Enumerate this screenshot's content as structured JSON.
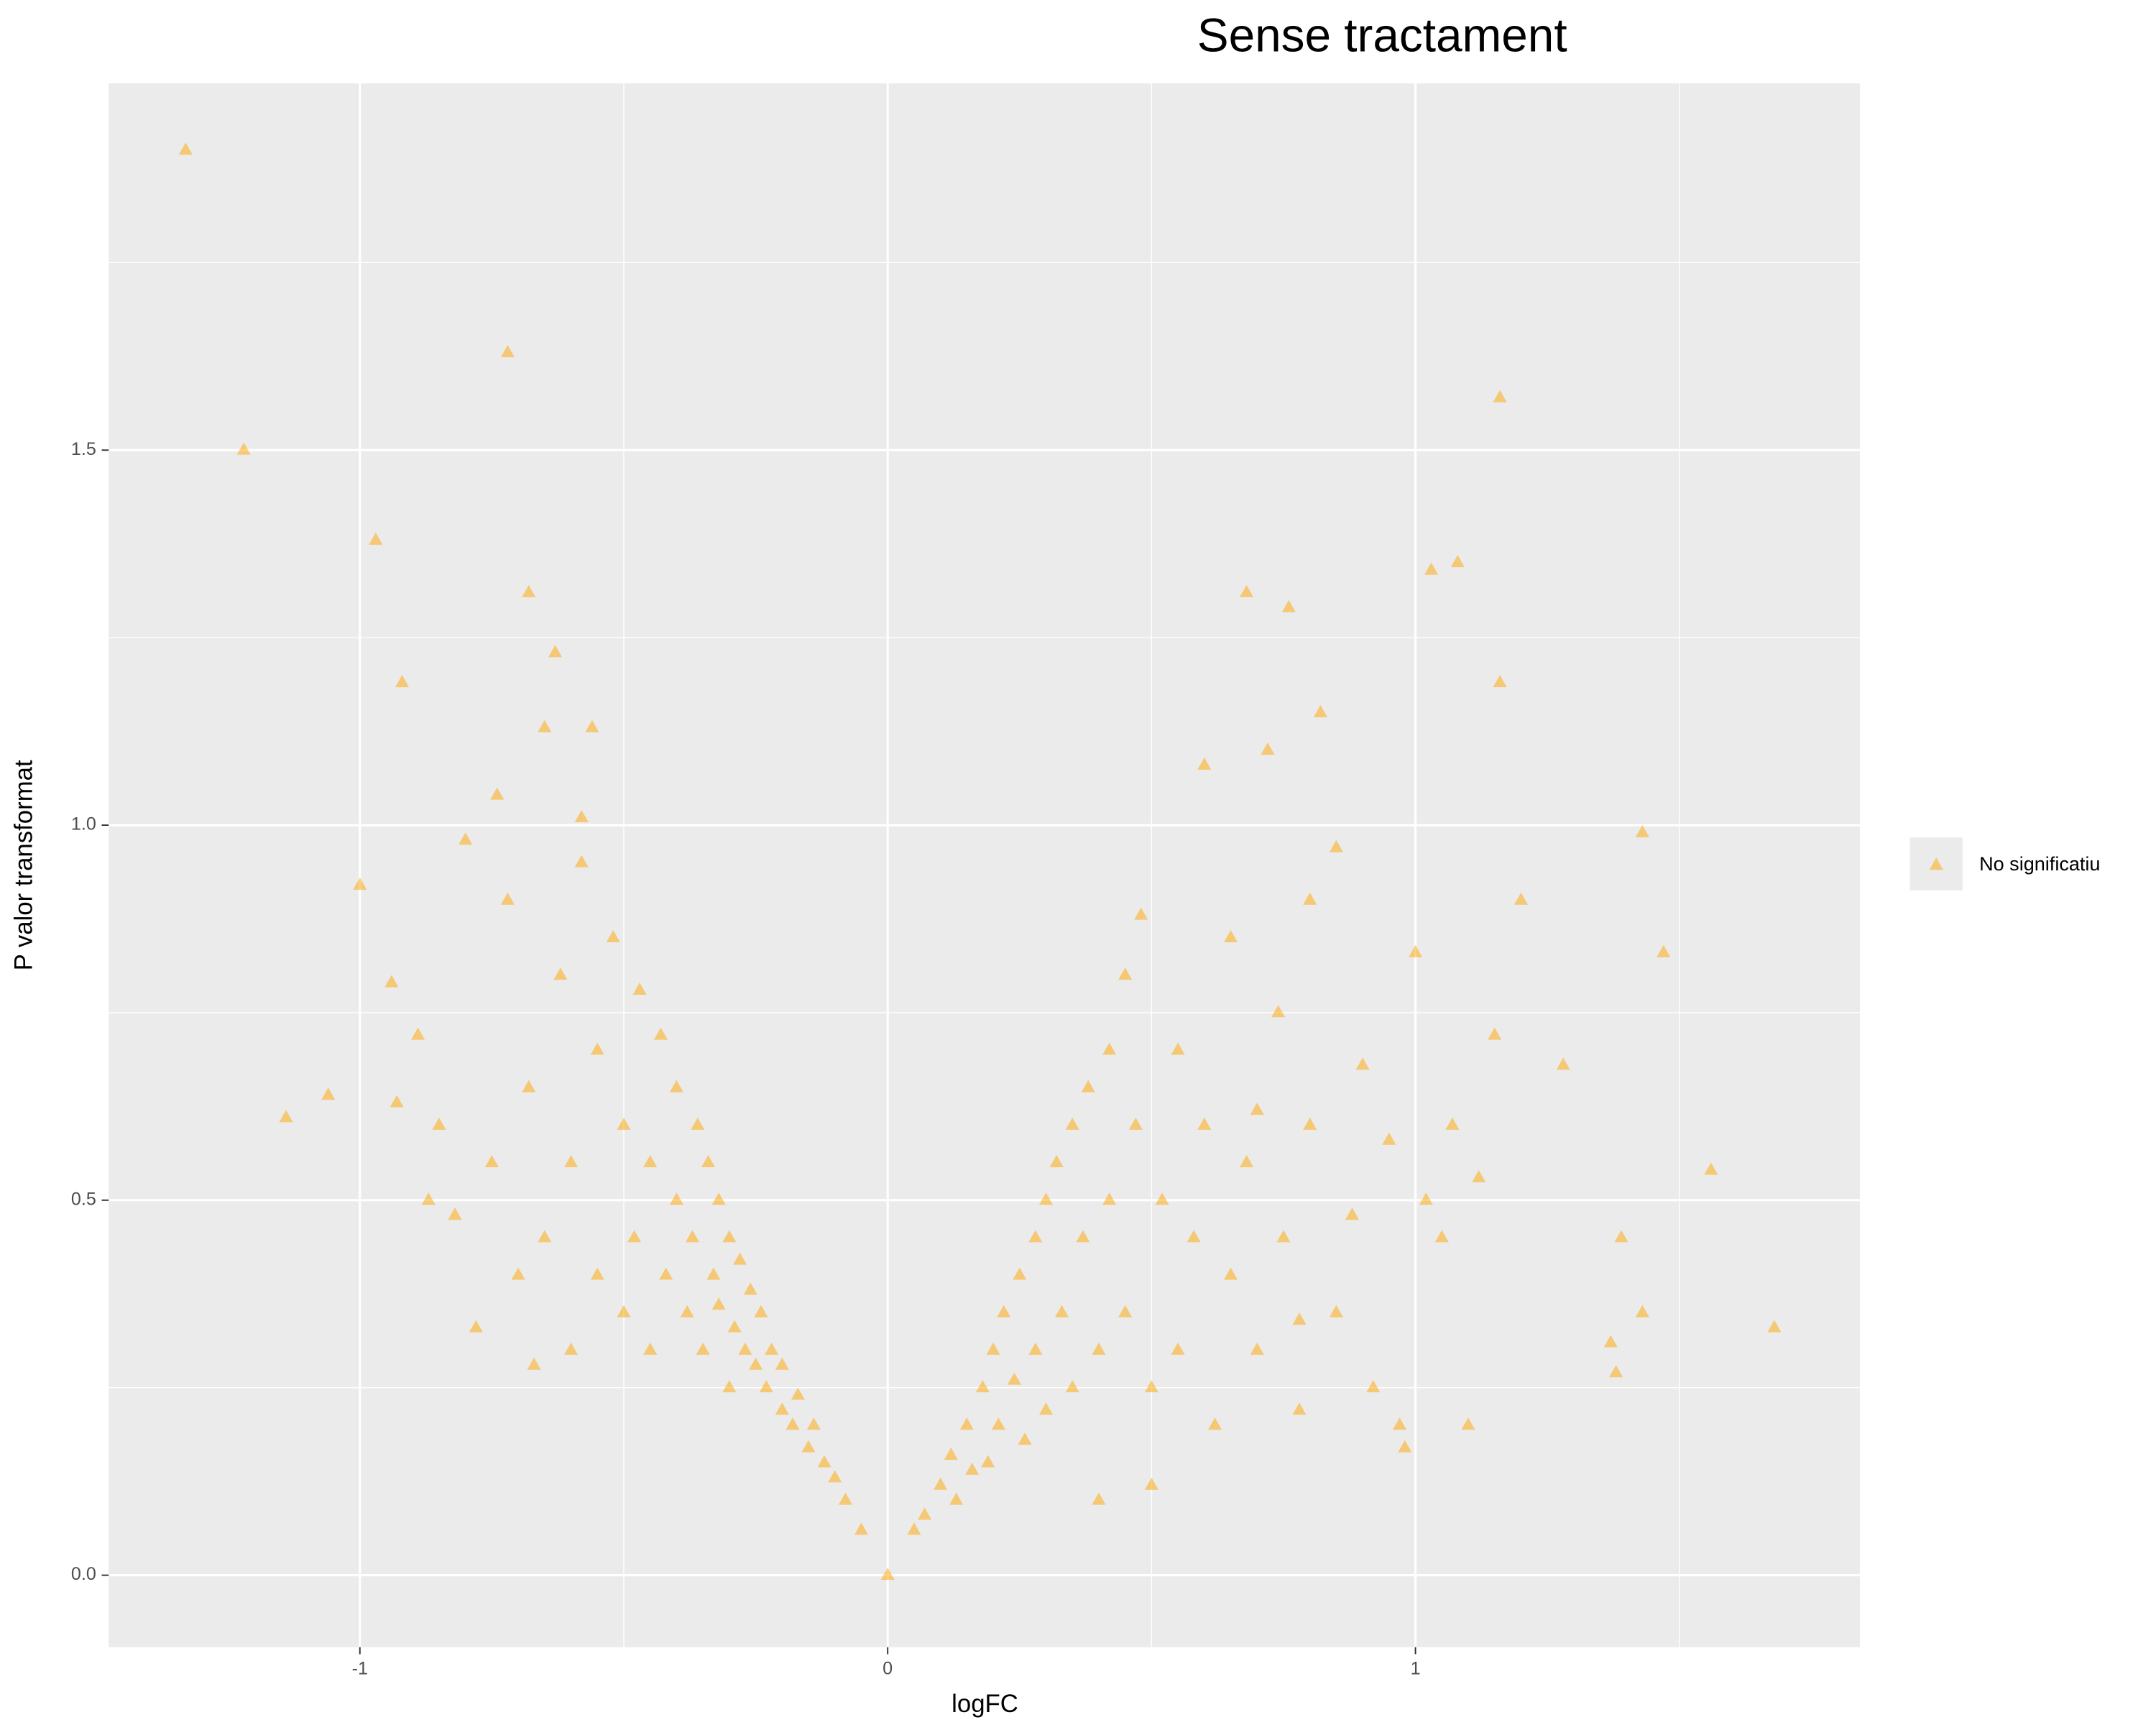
{
  "chart_data": {
    "type": "scatter",
    "title": "Sense tractament",
    "x_label": "logFC",
    "y_label": "P valor transformat",
    "xlim": [
      -1.476,
      1.842
    ],
    "ylim": [
      -0.096,
      1.989
    ],
    "xticks": [
      -1,
      0,
      1
    ],
    "yticks": [
      {
        "value": 0,
        "label": "0.0"
      },
      0.5,
      {
        "value": 1,
        "label": "1.0"
      },
      1.5
    ],
    "x_minor_breaks": [
      -1.5,
      -0.5,
      0.5,
      1.5
    ],
    "y_minor_breaks": [
      0.25,
      0.75,
      1.25,
      1.75
    ],
    "grid": true,
    "legend_position": "right",
    "marker": "triangle",
    "opacity": 0.5,
    "series": [
      {
        "name": "No significatiu",
        "color": "#FFA500",
        "x": [
          -1.33,
          -0.72,
          -1.22,
          -0.97,
          -0.68,
          -0.92,
          -0.63,
          -1.0,
          -0.94,
          -0.89,
          -1.06,
          -1.14,
          -0.93,
          1.16,
          1.03,
          1.08,
          0.68,
          0.76,
          1.16,
          1.43,
          1.47,
          1.2,
          1.68,
          1.56,
          1.43,
          1.37,
          1.38,
          1.28,
          1.39,
          1.0,
          -0.05,
          -0.08,
          -0.1,
          -0.12,
          -0.14,
          -0.15,
          -0.17,
          -0.18,
          -0.2,
          -0.2,
          -0.22,
          -0.23,
          -0.24,
          -0.25,
          -0.26,
          -0.27,
          -0.28,
          -0.29,
          -0.3,
          -0.3,
          -0.32,
          -0.32,
          -0.33,
          -0.34,
          -0.35,
          -0.36,
          -0.37,
          -0.38,
          -0.4,
          -0.4,
          -0.42,
          -0.43,
          -0.45,
          -0.45,
          -0.47,
          -0.48,
          -0.5,
          -0.5,
          -0.52,
          -0.55,
          -0.55,
          -0.58,
          -0.6,
          -0.6,
          -0.62,
          -0.65,
          -0.65,
          -0.68,
          -0.7,
          -0.72,
          -0.75,
          -0.78,
          -0.8,
          -0.82,
          -0.85,
          -0.87,
          -0.74,
          -0.56,
          -0.58,
          -0.67,
          0.05,
          0.07,
          0.1,
          0.12,
          0.13,
          0.15,
          0.16,
          0.18,
          0.19,
          0.2,
          0.21,
          0.22,
          0.24,
          0.25,
          0.26,
          0.28,
          0.28,
          0.3,
          0.3,
          0.32,
          0.33,
          0.35,
          0.35,
          0.37,
          0.38,
          0.4,
          0.42,
          0.42,
          0.45,
          0.45,
          0.47,
          0.48,
          0.5,
          0.52,
          0.55,
          0.55,
          0.58,
          0.6,
          0.6,
          0.62,
          0.65,
          0.65,
          0.68,
          0.7,
          0.72,
          0.74,
          0.75,
          0.78,
          0.8,
          0.8,
          0.82,
          0.85,
          0.85,
          0.88,
          0.9,
          0.92,
          0.95,
          0.97,
          0.98,
          1.02,
          1.05,
          1.07,
          1.1,
          1.12,
          1.15,
          0.78,
          0.7,
          0.5,
          0.4,
          0
        ],
        "y": [
          1.9,
          1.63,
          1.5,
          1.38,
          1.31,
          1.19,
          1.23,
          0.92,
          0.79,
          0.72,
          0.64,
          0.61,
          0.63,
          1.57,
          1.34,
          1.35,
          1.31,
          1.29,
          1.19,
          0.99,
          0.83,
          0.9,
          0.33,
          0.54,
          0.35,
          0.31,
          0.27,
          0.68,
          0.45,
          0.83,
          0.06,
          0.1,
          0.13,
          0.15,
          0.2,
          0.17,
          0.24,
          0.2,
          0.28,
          0.22,
          0.3,
          0.25,
          0.35,
          0.28,
          0.38,
          0.3,
          0.42,
          0.33,
          0.45,
          0.25,
          0.5,
          0.36,
          0.4,
          0.55,
          0.3,
          0.6,
          0.45,
          0.35,
          0.65,
          0.5,
          0.4,
          0.72,
          0.55,
          0.3,
          0.78,
          0.45,
          0.6,
          0.35,
          0.85,
          0.7,
          0.4,
          0.95,
          0.55,
          0.3,
          0.8,
          0.45,
          1.13,
          0.65,
          0.4,
          0.9,
          0.55,
          0.33,
          0.98,
          0.48,
          0.6,
          0.5,
          1.04,
          1.13,
          1.01,
          0.28,
          0.06,
          0.08,
          0.12,
          0.16,
          0.1,
          0.2,
          0.14,
          0.25,
          0.15,
          0.3,
          0.2,
          0.35,
          0.26,
          0.4,
          0.18,
          0.45,
          0.3,
          0.5,
          0.22,
          0.55,
          0.35,
          0.6,
          0.25,
          0.45,
          0.65,
          0.3,
          0.7,
          0.5,
          0.8,
          0.35,
          0.6,
          0.88,
          0.25,
          0.5,
          0.7,
          0.3,
          0.45,
          1.08,
          0.6,
          0.2,
          0.85,
          0.4,
          0.55,
          0.3,
          1.1,
          0.75,
          0.45,
          0.22,
          0.9,
          0.6,
          1.15,
          0.35,
          0.97,
          0.48,
          0.68,
          0.25,
          0.58,
          0.2,
          0.17,
          0.5,
          0.45,
          0.6,
          0.2,
          0.53,
          0.72,
          0.34,
          0.62,
          0.12,
          0.1,
          0
        ]
      }
    ]
  }
}
